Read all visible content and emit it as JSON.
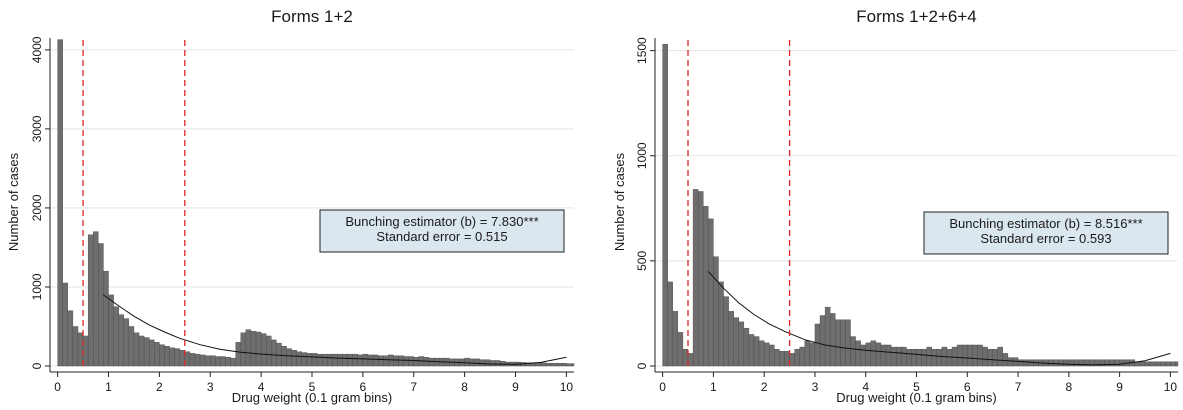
{
  "chart_data": [
    {
      "type": "bar",
      "title": "Forms 1+2",
      "xlabel": "Drug weight (0.1 gram bins)",
      "ylabel": "Number of cases",
      "xlim": [
        -0.15,
        10.15
      ],
      "ylim": [
        0,
        4150
      ],
      "xticks": [
        0,
        1,
        2,
        3,
        4,
        5,
        6,
        7,
        8,
        9,
        10
      ],
      "yticks": [
        0,
        1000,
        2000,
        3000,
        4000
      ],
      "grid": "horizontal",
      "bar_width": 0.1,
      "bar_color": "#6e6e6e",
      "x_start": 0,
      "values": [
        4130,
        1050,
        700,
        500,
        420,
        380,
        1660,
        1700,
        1550,
        1200,
        900,
        750,
        650,
        600,
        500,
        420,
        380,
        360,
        330,
        300,
        270,
        250,
        230,
        220,
        200,
        180,
        160,
        150,
        140,
        130,
        130,
        120,
        120,
        110,
        100,
        300,
        420,
        460,
        440,
        430,
        410,
        380,
        330,
        290,
        250,
        220,
        200,
        180,
        170,
        160,
        160,
        150,
        150,
        150,
        150,
        150,
        150,
        150,
        150,
        140,
        150,
        140,
        140,
        130,
        130,
        140,
        130,
        130,
        120,
        120,
        110,
        120,
        110,
        100,
        100,
        100,
        100,
        90,
        90,
        90,
        100,
        90,
        90,
        80,
        80,
        70,
        70,
        60,
        50,
        50,
        50,
        45,
        40,
        40,
        40,
        40,
        35,
        35,
        35,
        35,
        30,
        30,
        30,
        30,
        25,
        25,
        25,
        25,
        25,
        25,
        25,
        25,
        30,
        30,
        35,
        35,
        40,
        45,
        45,
        45,
        45,
        45,
        45,
        45,
        45,
        45,
        45,
        45,
        45,
        45,
        45,
        45,
        45,
        45,
        45,
        45,
        45,
        45,
        45,
        45,
        45,
        45,
        45,
        45,
        45,
        45,
        45,
        45
      ],
      "fit_curve": {
        "x": [
          0.9,
          1.2,
          1.5,
          1.8,
          2.1,
          2.4,
          2.8,
          3.2,
          3.6,
          4.0,
          4.5,
          5.0,
          5.5,
          6.0,
          6.5,
          7.0,
          7.5,
          8.0,
          8.5,
          9.0,
          9.5,
          10.0
        ],
        "y": [
          900,
          760,
          630,
          520,
          430,
          350,
          270,
          210,
          175,
          150,
          130,
          115,
          100,
          90,
          80,
          70,
          55,
          40,
          25,
          20,
          45,
          110
        ]
      },
      "cutoffs": [
        0.5,
        2.5
      ],
      "annotation": [
        "Bunching estimator (b) = 7.830***",
        "Standard error = 0.515"
      ]
    },
    {
      "type": "bar",
      "title": "Forms 1+2+6+4",
      "xlabel": "Drug weight (0.1 gram bins)",
      "ylabel": "Number of cases",
      "xlim": [
        -0.15,
        10.15
      ],
      "ylim": [
        0,
        1560
      ],
      "xticks": [
        0,
        1,
        2,
        3,
        4,
        5,
        6,
        7,
        8,
        9,
        10
      ],
      "yticks": [
        0,
        500,
        1000,
        1500
      ],
      "grid": "horizontal",
      "bar_width": 0.1,
      "bar_color": "#6e6e6e",
      "x_start": 0,
      "values": [
        1530,
        400,
        260,
        160,
        80,
        60,
        840,
        830,
        760,
        700,
        520,
        400,
        330,
        260,
        230,
        210,
        180,
        150,
        140,
        120,
        110,
        100,
        80,
        70,
        70,
        60,
        80,
        90,
        120,
        110,
        200,
        240,
        280,
        250,
        220,
        220,
        220,
        140,
        120,
        100,
        110,
        120,
        110,
        100,
        100,
        90,
        90,
        90,
        80,
        80,
        80,
        80,
        90,
        80,
        80,
        90,
        80,
        90,
        100,
        100,
        100,
        100,
        100,
        90,
        80,
        80,
        90,
        60,
        40,
        40,
        30,
        30,
        30,
        30,
        30,
        30,
        30,
        30,
        30,
        30,
        30,
        30,
        30,
        30,
        30,
        30,
        30,
        30,
        30,
        30,
        30,
        30,
        30,
        20,
        20,
        20,
        20,
        20,
        20,
        20,
        20,
        20,
        20,
        20,
        20,
        20,
        20,
        20,
        20,
        20,
        20,
        20,
        20,
        20,
        20,
        20,
        20,
        20,
        20,
        20,
        20,
        20,
        20,
        20,
        20,
        20,
        20
      ],
      "fit_curve": {
        "x": [
          0.9,
          1.2,
          1.5,
          1.8,
          2.1,
          2.4,
          2.8,
          3.2,
          3.6,
          4.0,
          4.5,
          5.0,
          5.5,
          6.0,
          6.5,
          7.0,
          7.5,
          8.0,
          8.5,
          9.0,
          9.5,
          10.0
        ],
        "y": [
          450,
          370,
          300,
          245,
          200,
          165,
          125,
          100,
          85,
          75,
          65,
          55,
          45,
          38,
          30,
          22,
          14,
          8,
          5,
          8,
          25,
          60
        ]
      },
      "cutoffs": [
        0.5,
        2.5
      ],
      "annotation": [
        "Bunching estimator (b) = 8.516***",
        "Standard error = 0.593"
      ]
    }
  ],
  "colors": {
    "bar": "#6e6e6e",
    "bar_stroke": "#4a4a4a",
    "grid": "#e4e4e4",
    "cutoff": "#e0232b",
    "fit": "#111111",
    "annotation_fill": "#dbe7ee",
    "annotation_stroke": "#222222"
  }
}
